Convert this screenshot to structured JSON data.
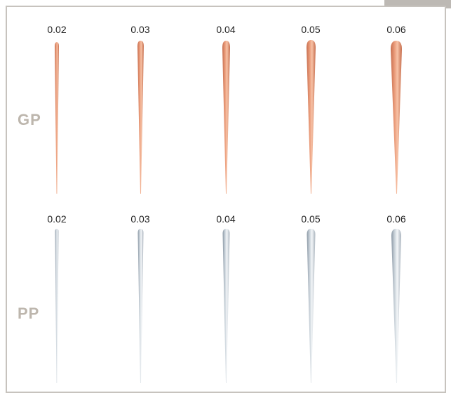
{
  "rows": [
    {
      "label": "GP",
      "colors": {
        "light": "#f7c2a6",
        "mid": "#ea9c7b",
        "dark": "#c76e4e"
      },
      "columns": [
        "0.02",
        "0.03",
        "0.04",
        "0.05",
        "0.06"
      ]
    },
    {
      "label": "PP",
      "colors": {
        "light": "#f3f6f8",
        "mid": "#c5ced6",
        "dark": "#8b98a5"
      },
      "columns": [
        "0.02",
        "0.03",
        "0.04",
        "0.05",
        "0.06"
      ]
    }
  ],
  "icons": [
    "file-icon-gp",
    "file-icon-pp"
  ]
}
